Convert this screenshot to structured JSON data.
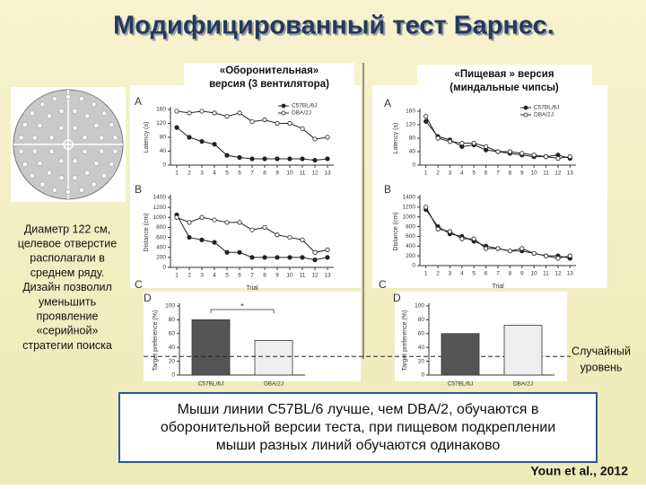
{
  "title": "Модифицированный тест Барнес.",
  "left_text": [
    "Диаметр 122 см,",
    "целевое отверстие",
    "располагали в",
    "среднем ряду.",
    "Дизайн позволил",
    "уменьшить",
    "проявление",
    "«серийной»",
    "стратегии поиска"
  ],
  "panels": [
    {
      "caption": [
        "«Оборонительная»",
        "версия (3 вентилятора)"
      ],
      "letter_c": "C"
    },
    {
      "caption": [
        "«Пищевая » версия",
        "(миндальные чипсы)"
      ],
      "letter_c": "C"
    }
  ],
  "chart_data": [
    {
      "type": "line",
      "panel": "A",
      "ylabel": "Latency (s)",
      "x": [
        1,
        2,
        3,
        4,
        5,
        6,
        7,
        8,
        9,
        10,
        11,
        12,
        13
      ],
      "xlim": [
        0.5,
        13.5
      ],
      "xticks": [
        1,
        2,
        3,
        4,
        5,
        6,
        7,
        8,
        9,
        10,
        11,
        12,
        13
      ],
      "ylim": [
        0,
        160
      ],
      "yticks": [
        0,
        40,
        80,
        120,
        160
      ],
      "series": [
        {
          "name": "C57BL/6J",
          "color": "#222222",
          "fill": "#222222",
          "values": [
            108,
            80,
            68,
            60,
            28,
            22,
            18,
            18,
            18,
            18,
            18,
            14,
            18
          ]
        },
        {
          "name": "DBA/2J",
          "color": "#222222",
          "fill": "#ffffff",
          "values": [
            155,
            150,
            155,
            150,
            140,
            150,
            125,
            130,
            120,
            120,
            105,
            75,
            80
          ]
        }
      ]
    },
    {
      "type": "line",
      "panel": "B",
      "ylabel": "Distance (cm)",
      "xlabel": "Trial",
      "x": [
        1,
        2,
        3,
        4,
        5,
        6,
        7,
        8,
        9,
        10,
        11,
        12,
        13
      ],
      "xlim": [
        0.5,
        13.5
      ],
      "xticks": [
        1,
        2,
        3,
        4,
        5,
        6,
        7,
        8,
        9,
        10,
        11,
        12,
        13
      ],
      "ylim": [
        0,
        1400
      ],
      "yticks": [
        0,
        200,
        400,
        600,
        800,
        1000,
        1200,
        1400
      ],
      "series": [
        {
          "color": "#222222",
          "fill": "#222222",
          "values": [
            1050,
            600,
            550,
            500,
            300,
            300,
            200,
            200,
            200,
            200,
            200,
            150,
            200
          ]
        },
        {
          "color": "#222222",
          "fill": "#ffffff",
          "values": [
            1000,
            900,
            1000,
            950,
            900,
            900,
            750,
            800,
            650,
            600,
            550,
            300,
            350
          ]
        }
      ]
    },
    {
      "type": "bar",
      "panel": "D",
      "ylabel": "Target preference (%)",
      "categories": [
        "C57BL/6J",
        "DBA/2J"
      ],
      "values": [
        80,
        50
      ],
      "colors": [
        "#555555",
        "#eeeeee"
      ],
      "ylim": [
        0,
        100
      ],
      "yticks": [
        0,
        20,
        40,
        60,
        80,
        100
      ],
      "significance": "*",
      "chance_level": 27
    },
    {
      "type": "line",
      "panel": "A",
      "ylabel": "Latency (s)",
      "x": [
        1,
        2,
        3,
        4,
        5,
        6,
        7,
        8,
        9,
        10,
        11,
        12,
        13
      ],
      "xlim": [
        0.5,
        13.5
      ],
      "xticks": [
        1,
        2,
        3,
        4,
        5,
        6,
        7,
        8,
        9,
        10,
        11,
        12,
        13
      ],
      "ylim": [
        0,
        160
      ],
      "yticks": [
        0,
        40,
        80,
        120,
        160
      ],
      "series": [
        {
          "name": "C57BL/6J",
          "color": "#222222",
          "fill": "#222222",
          "values": [
            130,
            85,
            75,
            55,
            60,
            45,
            40,
            35,
            30,
            25,
            25,
            30,
            20
          ]
        },
        {
          "name": "DBA/2J",
          "color": "#222222",
          "fill": "#ffffff",
          "values": [
            145,
            80,
            70,
            65,
            65,
            55,
            40,
            40,
            35,
            30,
            25,
            20,
            25
          ]
        }
      ]
    },
    {
      "type": "line",
      "panel": "B",
      "ylabel": "Distance (cm)",
      "xlabel": "Trial",
      "x": [
        1,
        2,
        3,
        4,
        5,
        6,
        7,
        8,
        9,
        10,
        11,
        12,
        13
      ],
      "xlim": [
        0.5,
        13.5
      ],
      "xticks": [
        1,
        2,
        3,
        4,
        5,
        6,
        7,
        8,
        9,
        10,
        11,
        12,
        13
      ],
      "ylim": [
        0,
        1400
      ],
      "yticks": [
        0,
        200,
        400,
        600,
        800,
        1000,
        1200,
        1400
      ],
      "series": [
        {
          "color": "#222222",
          "fill": "#222222",
          "values": [
            1150,
            800,
            650,
            600,
            500,
            400,
            350,
            300,
            300,
            250,
            200,
            200,
            150
          ]
        },
        {
          "color": "#222222",
          "fill": "#ffffff",
          "values": [
            1200,
            750,
            700,
            550,
            550,
            350,
            350,
            300,
            350,
            250,
            200,
            150,
            200
          ]
        }
      ]
    },
    {
      "type": "bar",
      "panel": "D",
      "ylabel": "Target preference (%)",
      "categories": [
        "C57BL/6J",
        "DBA/2J"
      ],
      "values": [
        60,
        72
      ],
      "colors": [
        "#555555",
        "#eeeeee"
      ],
      "ylim": [
        0,
        100
      ],
      "yticks": [
        0,
        20,
        40,
        60,
        80,
        100
      ]
    }
  ],
  "chance_label": [
    "Случайный",
    "уровень"
  ],
  "conclusion": [
    "Мыши линии C57BL/6 лучше, чем DBA/2, обучаются в",
    "оборонительной версии теста, при пищевом подкреплении",
    "мыши разных линий обучаются одинаково"
  ],
  "citation": "Youn et al., 2012"
}
